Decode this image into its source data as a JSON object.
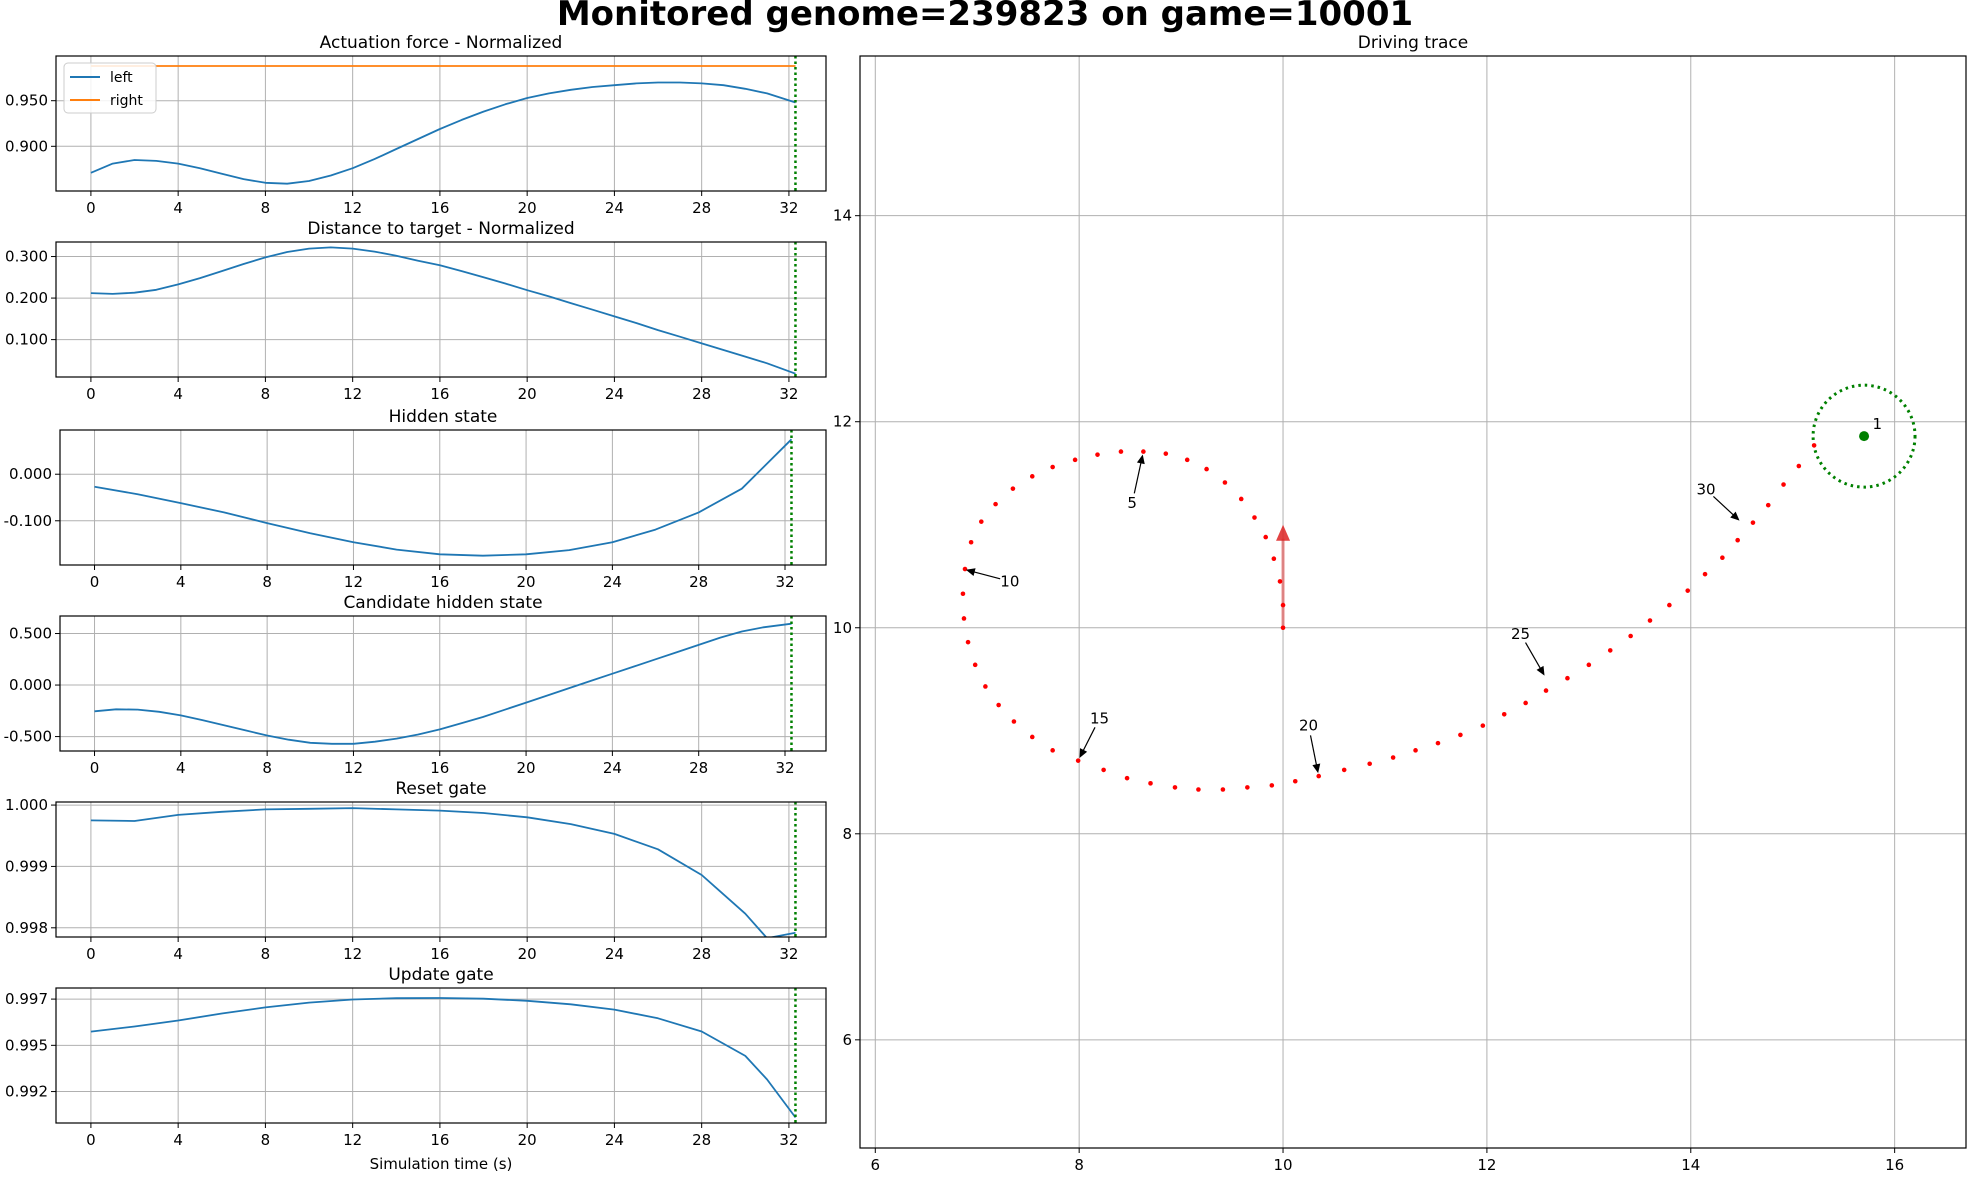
{
  "suptitle": "Monitored genome=239823 on game=10001",
  "colors": {
    "series_blue": "#1f77b4",
    "series_orange": "#ff7f0e",
    "marker_line": "#008000",
    "trace_points": "#ff0000",
    "heading_arrow": "#e06060",
    "grid": "#b0b0b0"
  },
  "chart_data": [
    {
      "type": "line",
      "title": "Actuation force - Normalized",
      "xlabel": "",
      "ylabel": "",
      "xlim": [
        -1.6,
        33.7
      ],
      "ylim": [
        0.851,
        0.999
      ],
      "xticks": [
        0,
        4,
        8,
        12,
        16,
        20,
        24,
        28,
        32
      ],
      "xtick_labels": [
        "0",
        "4",
        "8",
        "12",
        "16",
        "20",
        "24",
        "28",
        "32"
      ],
      "yticks": [
        0.9,
        0.95
      ],
      "ytick_labels": [
        "0.900",
        "0.950"
      ],
      "grid": true,
      "legend": "upper left",
      "marker_x": 32.3,
      "series": [
        {
          "name": "left",
          "color": "#1f77b4",
          "x": [
            0,
            1,
            2,
            3,
            4,
            5,
            6,
            7,
            8,
            9,
            10,
            11,
            12,
            13,
            14,
            15,
            16,
            17,
            18,
            19,
            20,
            21,
            22,
            23,
            24,
            25,
            26,
            27,
            28,
            29,
            30,
            31,
            32.3
          ],
          "y": [
            0.871,
            0.881,
            0.885,
            0.884,
            0.881,
            0.876,
            0.87,
            0.864,
            0.86,
            0.859,
            0.862,
            0.868,
            0.876,
            0.886,
            0.897,
            0.908,
            0.919,
            0.929,
            0.938,
            0.946,
            0.953,
            0.958,
            0.962,
            0.965,
            0.967,
            0.969,
            0.97,
            0.97,
            0.969,
            0.967,
            0.963,
            0.958,
            0.948
          ]
        },
        {
          "name": "right",
          "color": "#ff7f0e",
          "x": [
            0,
            32.3
          ],
          "y": [
            0.988,
            0.988
          ]
        }
      ]
    },
    {
      "type": "line",
      "title": "Distance to target - Normalized",
      "xlabel": "",
      "ylabel": "",
      "xlim": [
        -1.6,
        33.7
      ],
      "ylim": [
        0.01,
        0.335
      ],
      "xticks": [
        0,
        4,
        8,
        12,
        16,
        20,
        24,
        28,
        32
      ],
      "xtick_labels": [
        "0",
        "4",
        "8",
        "12",
        "16",
        "20",
        "24",
        "28",
        "32"
      ],
      "yticks": [
        0.1,
        0.2,
        0.3
      ],
      "ytick_labels": [
        "0.100",
        "0.200",
        "0.300"
      ],
      "grid": true,
      "marker_x": 32.3,
      "series": [
        {
          "color": "#1f77b4",
          "x": [
            0,
            1,
            2,
            3,
            4,
            5,
            6,
            7,
            8,
            9,
            10,
            11,
            12,
            13,
            14,
            15,
            16,
            17,
            18,
            19,
            20,
            21,
            22,
            23,
            24,
            25,
            26,
            27,
            28,
            29,
            30,
            31,
            32.3
          ],
          "y": [
            0.212,
            0.21,
            0.213,
            0.22,
            0.233,
            0.248,
            0.265,
            0.282,
            0.298,
            0.311,
            0.319,
            0.322,
            0.319,
            0.312,
            0.302,
            0.29,
            0.279,
            0.265,
            0.25,
            0.235,
            0.219,
            0.204,
            0.188,
            0.172,
            0.156,
            0.14,
            0.123,
            0.107,
            0.091,
            0.075,
            0.059,
            0.043,
            0.018
          ]
        }
      ]
    },
    {
      "type": "line",
      "title": "Hidden state",
      "xlabel": "",
      "ylabel": "",
      "xlim": [
        -1.6,
        33.9
      ],
      "ylim": [
        -0.195,
        0.095
      ],
      "xticks": [
        0,
        4,
        8,
        12,
        16,
        20,
        24,
        28,
        32
      ],
      "xtick_labels": [
        "0",
        "4",
        "8",
        "12",
        "16",
        "20",
        "24",
        "28",
        "32"
      ],
      "yticks": [
        -0.1,
        0
      ],
      "ytick_labels": [
        "-0.100",
        "0.000"
      ],
      "grid": true,
      "marker_x": 32.3,
      "series": [
        {
          "color": "#1f77b4",
          "x": [
            0,
            2,
            4,
            6,
            8,
            10,
            12,
            14,
            16,
            18,
            20,
            22,
            24,
            26,
            28,
            30,
            32.3
          ],
          "y": [
            -0.027,
            -0.043,
            -0.062,
            -0.082,
            -0.105,
            -0.127,
            -0.146,
            -0.162,
            -0.172,
            -0.175,
            -0.172,
            -0.163,
            -0.146,
            -0.119,
            -0.082,
            -0.031,
            0.075
          ]
        }
      ]
    },
    {
      "type": "line",
      "title": "Candidate hidden state",
      "xlabel": "",
      "ylabel": "",
      "xlim": [
        -1.6,
        33.9
      ],
      "ylim": [
        -0.64,
        0.67
      ],
      "xticks": [
        0,
        4,
        8,
        12,
        16,
        20,
        24,
        28,
        32
      ],
      "xtick_labels": [
        "0",
        "4",
        "8",
        "12",
        "16",
        "20",
        "24",
        "28",
        "32"
      ],
      "yticks": [
        -0.5,
        0,
        0.5
      ],
      "ytick_labels": [
        "-0.500",
        "0.000",
        "0.500"
      ],
      "grid": true,
      "marker_x": 32.3,
      "series": [
        {
          "color": "#1f77b4",
          "x": [
            0,
            1,
            2,
            3,
            4,
            5,
            6,
            7,
            8,
            9,
            10,
            11,
            12,
            13,
            14,
            15,
            16,
            17,
            18,
            19,
            20,
            21,
            22,
            23,
            24,
            25,
            26,
            27,
            28,
            29,
            30,
            31,
            32.3
          ],
          "y": [
            -0.255,
            -0.235,
            -0.238,
            -0.26,
            -0.295,
            -0.34,
            -0.39,
            -0.44,
            -0.49,
            -0.53,
            -0.56,
            -0.57,
            -0.57,
            -0.55,
            -0.52,
            -0.48,
            -0.43,
            -0.37,
            -0.31,
            -0.24,
            -0.17,
            -0.1,
            -0.03,
            0.04,
            0.11,
            0.18,
            0.25,
            0.32,
            0.39,
            0.46,
            0.52,
            0.56,
            0.595
          ]
        }
      ]
    },
    {
      "type": "line",
      "title": "Reset gate",
      "xlabel": "",
      "ylabel": "",
      "xlim": [
        -1.6,
        33.7
      ],
      "ylim": [
        0.99785,
        1.00005
      ],
      "xticks": [
        0,
        4,
        8,
        12,
        16,
        20,
        24,
        28,
        32
      ],
      "xtick_labels": [
        "0",
        "4",
        "8",
        "12",
        "16",
        "20",
        "24",
        "28",
        "32"
      ],
      "yticks": [
        0.998,
        0.999,
        1
      ],
      "ytick_labels": [
        "0.998",
        "0.999",
        "1.000"
      ],
      "grid": true,
      "marker_x": 32.3,
      "series": [
        {
          "color": "#1f77b4",
          "x": [
            0,
            2,
            4,
            6,
            8,
            10,
            12,
            14,
            16,
            18,
            20,
            22,
            24,
            26,
            28,
            30,
            31,
            32.3
          ],
          "y": [
            0.99975,
            0.99974,
            0.99984,
            0.99989,
            0.99993,
            0.99994,
            0.99995,
            0.99993,
            0.99991,
            0.99987,
            0.9998,
            0.99969,
            0.99953,
            0.99928,
            0.99886,
            0.99823,
            0.99783,
            0.99792
          ]
        }
      ]
    },
    {
      "type": "line",
      "title": "Update gate",
      "xlabel": "Simulation time (s)",
      "ylabel": "",
      "xlim": [
        -1.6,
        33.7
      ],
      "ylim": [
        0.9903,
        0.9976
      ],
      "xticks": [
        0,
        4,
        8,
        12,
        16,
        20,
        24,
        28,
        32
      ],
      "xtick_labels": [
        "0",
        "4",
        "8",
        "12",
        "16",
        "20",
        "24",
        "28",
        "32"
      ],
      "yticks": [
        0.992,
        0.9945,
        0.997
      ],
      "ytick_labels": [
        "0.992",
        "0.995",
        "0.997"
      ],
      "grid": true,
      "marker_x": 32.3,
      "series": [
        {
          "color": "#1f77b4",
          "x": [
            0,
            2,
            4,
            6,
            8,
            10,
            12,
            14,
            16,
            18,
            20,
            22,
            24,
            26,
            28,
            30,
            31,
            32.3
          ],
          "y": [
            0.99524,
            0.99552,
            0.99584,
            0.99622,
            0.99655,
            0.99681,
            0.99698,
            0.99705,
            0.99706,
            0.99702,
            0.99691,
            0.99672,
            0.99643,
            0.99596,
            0.99525,
            0.99393,
            0.99265,
            0.9906
          ]
        }
      ]
    },
    {
      "type": "scatter",
      "title": "Driving trace",
      "xlabel": "",
      "ylabel": "",
      "xlim": [
        5.85,
        16.7
      ],
      "ylim": [
        4.95,
        15.55
      ],
      "xticks": [
        6,
        8,
        10,
        12,
        14,
        16
      ],
      "xtick_labels": [
        "6",
        "8",
        "10",
        "12",
        "14",
        "16"
      ],
      "yticks": [
        6,
        8,
        10,
        12,
        14
      ],
      "ytick_labels": [
        "6",
        "8",
        "10",
        "12",
        "14"
      ],
      "grid": true,
      "trace": {
        "x": [
          10,
          10,
          9.97,
          9.91,
          9.83,
          9.72,
          9.59,
          9.43,
          9.25,
          9.06,
          8.85,
          8.63,
          8.41,
          8.18,
          7.96,
          7.74,
          7.54,
          7.35,
          7.18,
          7.04,
          6.94,
          6.88,
          6.86,
          6.87,
          6.91,
          6.98,
          7.08,
          7.21,
          7.36,
          7.54,
          7.74,
          7.99,
          8.24,
          8.47,
          8.7,
          8.94,
          9.17,
          9.41,
          9.65,
          9.89,
          10.12,
          10.35,
          10.6,
          10.85,
          11.08,
          11.3,
          11.52,
          11.74,
          11.96,
          12.17,
          12.38,
          12.58,
          12.79,
          13,
          13.21,
          13.41,
          13.6,
          13.79,
          13.97,
          14.14,
          14.31,
          14.46,
          14.61,
          14.76,
          14.91,
          15.06,
          15.21
        ],
        "y": [
          10,
          10.22,
          10.45,
          10.67,
          10.88,
          11.07,
          11.25,
          11.41,
          11.54,
          11.63,
          11.69,
          11.71,
          11.71,
          11.68,
          11.63,
          11.56,
          11.47,
          11.35,
          11.2,
          11.03,
          10.83,
          10.57,
          10.33,
          10.09,
          9.86,
          9.64,
          9.43,
          9.25,
          9.09,
          8.94,
          8.81,
          8.71,
          8.62,
          8.54,
          8.49,
          8.45,
          8.43,
          8.43,
          8.45,
          8.47,
          8.51,
          8.56,
          8.62,
          8.68,
          8.74,
          8.81,
          8.88,
          8.96,
          9.05,
          9.16,
          9.27,
          9.39,
          9.51,
          9.64,
          9.78,
          9.92,
          10.07,
          10.22,
          10.36,
          10.52,
          10.68,
          10.85,
          11.02,
          11.19,
          11.39,
          11.57,
          11.77
        ]
      },
      "heading_arrow": {
        "x": 10,
        "y": 10,
        "dx": 0,
        "dy": 1
      },
      "target": {
        "x": 15.7,
        "y": 11.86,
        "radius": 0.5
      },
      "annotations": [
        {
          "text": "1",
          "x": 15.7,
          "y": 11.86,
          "tx": 15.83,
          "ty": 11.98
        },
        {
          "text": "5",
          "x": 8.63,
          "y": 11.71,
          "tx": 8.52,
          "ty": 11.21
        },
        {
          "text": "10",
          "x": 6.86,
          "y": 10.57,
          "tx": 7.32,
          "ty": 10.45
        },
        {
          "text": "15",
          "x": 7.99,
          "y": 8.71,
          "tx": 8.2,
          "ty": 9.12
        },
        {
          "text": "20",
          "x": 10.35,
          "y": 8.56,
          "tx": 10.25,
          "ty": 9.05
        },
        {
          "text": "25",
          "x": 12.58,
          "y": 9.51,
          "tx": 12.33,
          "ty": 9.94
        },
        {
          "text": "30",
          "x": 14.5,
          "y": 11.02,
          "tx": 14.15,
          "ty": 11.34
        }
      ]
    }
  ]
}
